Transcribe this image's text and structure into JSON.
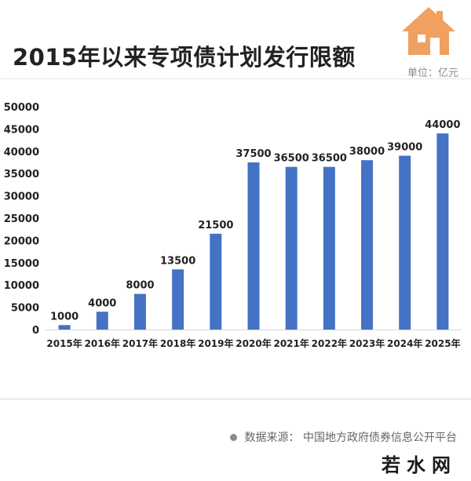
{
  "header": {
    "title": "2015年以来专项债计划发行限额",
    "unit": "单位：亿元",
    "house_icon": "house-icon",
    "house_color": "#f0a15f"
  },
  "chart_data": {
    "type": "bar",
    "categories": [
      "2015年",
      "2016年",
      "2017年",
      "2018年",
      "2019年",
      "2020年",
      "2021年",
      "2022年",
      "2023年",
      "2024年",
      "2025年"
    ],
    "values": [
      1000,
      4000,
      8000,
      13500,
      21500,
      37500,
      36500,
      36500,
      38000,
      39000,
      44000
    ],
    "data_labels": [
      "1000",
      "4000",
      "8000",
      "13500",
      "21500",
      "37500",
      "36500",
      "36500",
      "38000",
      "39000",
      "44000"
    ],
    "yticks": [
      0,
      5000,
      10000,
      15000,
      20000,
      25000,
      30000,
      35000,
      40000,
      45000,
      50000
    ],
    "ylim": [
      0,
      50000
    ],
    "bar_color": "#4472c4",
    "grid": false,
    "title": "2015年以来专项债计划发行限额"
  },
  "footer": {
    "source": "数据来源：  中国地方政府债券信息公开平台",
    "brand": "若水网"
  }
}
